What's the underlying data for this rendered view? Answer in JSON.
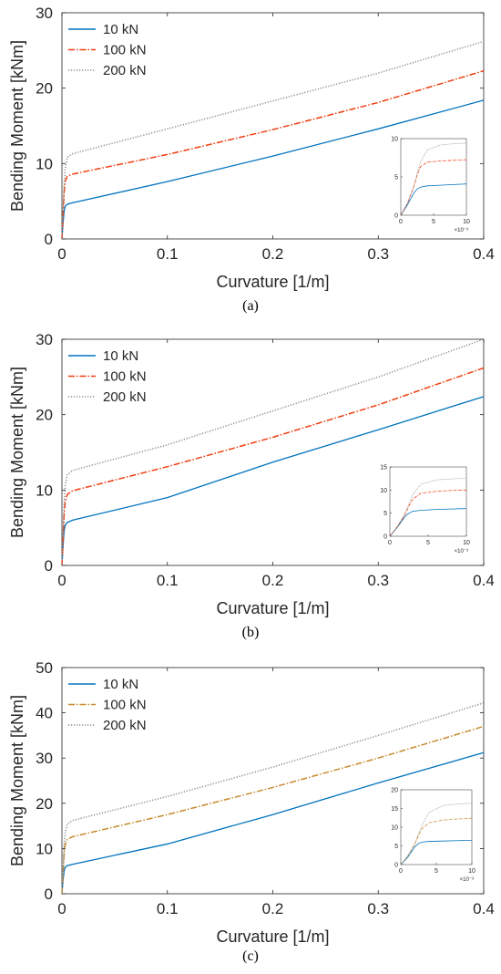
{
  "colors": {
    "s10": "#0072BD",
    "s100_ab": "#F03E10",
    "s100_c": "#C88A2E",
    "s200": "#8C8C8C",
    "axis": "#262626"
  },
  "chart_data": [
    {
      "type": "line",
      "caption": "(a)",
      "xlabel": "Curvature [1/m]",
      "ylabel": "Bending Moment [kNm]",
      "xlim": [
        0,
        0.4
      ],
      "ylim": [
        0,
        30
      ],
      "xticks": [
        "0",
        "0.1",
        "0.2",
        "0.3",
        "0.4"
      ],
      "yticks": [
        "0",
        "10",
        "20",
        "30"
      ],
      "legend_position": "top-left",
      "series": [
        {
          "name": "10 kN",
          "style": "solid",
          "color_key": "s10",
          "x": [
            0,
            0.001,
            0.002,
            0.003,
            0.005,
            0.01,
            0.1,
            0.2,
            0.3,
            0.4
          ],
          "y": [
            0,
            2.0,
            3.6,
            4.3,
            4.6,
            4.8,
            7.6,
            11.0,
            14.6,
            18.4
          ]
        },
        {
          "name": "100 kN",
          "style": "dashdot",
          "color_key": "s100_ab",
          "x": [
            0,
            0.001,
            0.002,
            0.003,
            0.005,
            0.01,
            0.1,
            0.2,
            0.3,
            0.4
          ],
          "y": [
            0,
            3.0,
            6.0,
            7.6,
            8.3,
            8.6,
            11.2,
            14.5,
            18.1,
            22.3
          ]
        },
        {
          "name": "200 kN",
          "style": "dotted",
          "color_key": "s200",
          "x": [
            0,
            0.001,
            0.002,
            0.003,
            0.005,
            0.01,
            0.1,
            0.2,
            0.3,
            0.4
          ],
          "y": [
            0,
            3.5,
            7.0,
            9.2,
            10.8,
            11.3,
            14.6,
            18.3,
            22.0,
            26.2
          ]
        }
      ],
      "inset": {
        "xlim": [
          0,
          10
        ],
        "ylim": [
          0,
          12
        ],
        "xticks": [
          "0",
          "5",
          "10"
        ],
        "yticks": [
          "0",
          "5",
          "10"
        ],
        "xexp": "×10⁻³",
        "series": [
          {
            "x": [
              0,
              1,
              2,
              2.5,
              3,
              4,
              6,
              8,
              10
            ],
            "y": [
              0,
              1.6,
              3.5,
              4.1,
              4.4,
              4.6,
              4.7,
              4.8,
              4.9
            ]
          },
          {
            "x": [
              0,
              1,
              2,
              2.5,
              3,
              4,
              6,
              8,
              10
            ],
            "y": [
              0,
              1.8,
              4.5,
              6.3,
              7.6,
              8.3,
              8.5,
              8.6,
              8.7
            ]
          },
          {
            "x": [
              0,
              1,
              2,
              2.5,
              3,
              4,
              6,
              8,
              10
            ],
            "y": [
              0,
              1.9,
              4.6,
              6.6,
              8.3,
              10.2,
              11.0,
              11.2,
              11.3
            ]
          }
        ]
      }
    },
    {
      "type": "line",
      "caption": "(b)",
      "xlabel": "Curvature [1/m]",
      "ylabel": "Bending Moment [kNm]",
      "xlim": [
        0,
        0.4
      ],
      "ylim": [
        0,
        30
      ],
      "xticks": [
        "0",
        "0.1",
        "0.2",
        "0.3",
        "0.4"
      ],
      "yticks": [
        "0",
        "10",
        "20",
        "30"
      ],
      "legend_position": "top-left",
      "series": [
        {
          "name": "10 kN",
          "style": "solid",
          "color_key": "s10",
          "x": [
            0,
            0.001,
            0.002,
            0.003,
            0.005,
            0.01,
            0.1,
            0.2,
            0.3,
            0.4
          ],
          "y": [
            0,
            2.5,
            4.5,
            5.3,
            5.7,
            6.0,
            9.0,
            13.7,
            18.0,
            22.4
          ]
        },
        {
          "name": "100 kN",
          "style": "dashdot",
          "color_key": "s100_ab",
          "x": [
            0,
            0.001,
            0.002,
            0.003,
            0.005,
            0.01,
            0.1,
            0.2,
            0.3,
            0.4
          ],
          "y": [
            0,
            3.2,
            6.5,
            8.4,
            9.4,
            9.9,
            13.1,
            17.0,
            21.3,
            26.2
          ]
        },
        {
          "name": "200 kN",
          "style": "dotted",
          "color_key": "s200",
          "x": [
            0,
            0.001,
            0.002,
            0.003,
            0.005,
            0.01,
            0.1,
            0.2,
            0.3,
            0.4
          ],
          "y": [
            0,
            4.0,
            8.0,
            10.5,
            12.0,
            12.6,
            16.0,
            20.5,
            25.0,
            30.0
          ]
        }
      ],
      "inset": {
        "xlim": [
          0,
          10
        ],
        "ylim": [
          0,
          15
        ],
        "xticks": [
          "0",
          "5",
          "10"
        ],
        "yticks": [
          "0",
          "5",
          "10",
          "15"
        ],
        "xexp": "×10⁻³",
        "series": [
          {
            "x": [
              0,
              1,
              2,
              2.5,
              3,
              4,
              6,
              8,
              10
            ],
            "y": [
              0,
              2.0,
              4.3,
              5.0,
              5.4,
              5.6,
              5.8,
              5.9,
              6.0
            ]
          },
          {
            "x": [
              0,
              1,
              2,
              2.5,
              3,
              4,
              6,
              8,
              10
            ],
            "y": [
              0,
              2.1,
              4.8,
              6.6,
              8.0,
              9.3,
              9.7,
              9.9,
              10.0
            ]
          },
          {
            "x": [
              0,
              1,
              2,
              2.5,
              3,
              4,
              6,
              8,
              10
            ],
            "y": [
              0,
              2.2,
              5.0,
              7.0,
              9.0,
              11.2,
              12.2,
              12.4,
              12.6
            ]
          }
        ]
      }
    },
    {
      "type": "line",
      "caption": "(c)",
      "xlabel": "Curvature [1/m]",
      "ylabel": "Bending Moment [kNm]",
      "xlim": [
        0,
        0.4
      ],
      "ylim": [
        0,
        50
      ],
      "xticks": [
        "0",
        "0.1",
        "0.2",
        "0.3",
        "0.4"
      ],
      "yticks": [
        "0",
        "10",
        "20",
        "30",
        "40",
        "50"
      ],
      "legend_position": "top-left",
      "series": [
        {
          "name": "10 kN",
          "style": "solid",
          "color_key": "s10",
          "x": [
            0,
            0.001,
            0.002,
            0.003,
            0.005,
            0.01,
            0.1,
            0.2,
            0.3,
            0.4
          ],
          "y": [
            0,
            2.8,
            5.0,
            5.8,
            6.2,
            6.5,
            11.0,
            17.5,
            24.5,
            31.2
          ]
        },
        {
          "name": "100 kN",
          "style": "dashdot",
          "color_key": "s100_c",
          "x": [
            0,
            0.001,
            0.002,
            0.003,
            0.005,
            0.01,
            0.1,
            0.2,
            0.3,
            0.4
          ],
          "y": [
            0,
            4.0,
            8.5,
            10.8,
            12.0,
            12.6,
            17.5,
            23.5,
            30.0,
            37.0
          ]
        },
        {
          "name": "200 kN",
          "style": "dotted",
          "color_key": "s200",
          "x": [
            0,
            0.001,
            0.002,
            0.003,
            0.005,
            0.01,
            0.1,
            0.2,
            0.3,
            0.4
          ],
          "y": [
            0,
            5.0,
            10.5,
            13.5,
            15.4,
            16.2,
            21.5,
            28.0,
            35.0,
            42.2
          ]
        }
      ],
      "inset": {
        "xlim": [
          0,
          10
        ],
        "ylim": [
          0,
          20
        ],
        "xticks": [
          "0",
          "5",
          "10"
        ],
        "yticks": [
          "0",
          "5",
          "10",
          "15",
          "20"
        ],
        "xexp": "×10⁻³",
        "series": [
          {
            "x": [
              0,
              1,
              2,
              2.5,
              3,
              4,
              6,
              8,
              10
            ],
            "y": [
              0,
              2.0,
              4.8,
              5.6,
              6.0,
              6.2,
              6.3,
              6.4,
              6.5
            ]
          },
          {
            "x": [
              0,
              1,
              2,
              2.5,
              3,
              4,
              6,
              8,
              10
            ],
            "y": [
              0,
              2.3,
              5.5,
              7.8,
              9.6,
              11.2,
              11.9,
              12.2,
              12.4
            ]
          },
          {
            "x": [
              0,
              1,
              2,
              2.5,
              3,
              4,
              6,
              8,
              10
            ],
            "y": [
              0,
              2.4,
              5.8,
              8.3,
              10.6,
              14.0,
              15.8,
              16.2,
              16.4
            ]
          }
        ]
      }
    }
  ]
}
